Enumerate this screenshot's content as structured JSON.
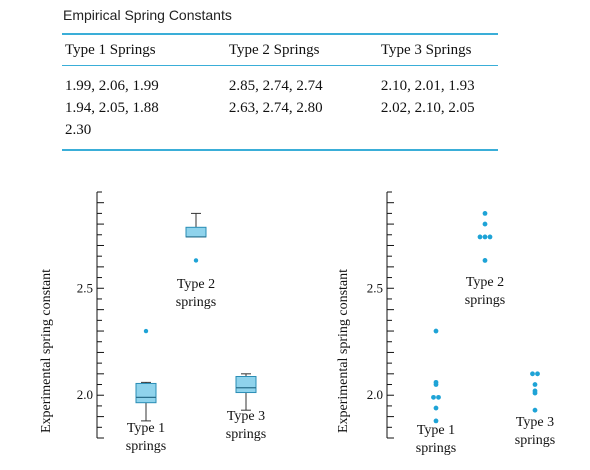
{
  "table": {
    "caption": "Empirical Spring Constants",
    "headers": [
      "Type 1 Springs",
      "Type 2 Springs",
      "Type 3 Springs"
    ],
    "cells": [
      "1.99, 2.06, 1.99\n1.94, 2.05, 1.88\n2.30",
      "2.85, 2.74, 2.74\n2.63, 2.74, 2.80",
      "2.10, 2.01, 1.93\n2.02, 2.10, 2.05"
    ]
  },
  "colors": {
    "accent": "#3aaed8",
    "box_fill": "#8fd3ec",
    "dot": "#1ea3d6"
  },
  "chart_data": [
    {
      "type": "box",
      "ylabel": "Experimental spring constant",
      "ylim": [
        1.8,
        2.95
      ],
      "yticks": [
        2.0,
        2.5
      ],
      "ytick_labels": [
        "2.0",
        "2.5"
      ],
      "groups": [
        {
          "label": [
            "Type 1",
            "springs"
          ],
          "values": [
            1.99,
            2.06,
            1.99,
            1.94,
            2.05,
            1.88,
            2.3
          ]
        },
        {
          "label": [
            "Type 2",
            "springs"
          ],
          "values": [
            2.85,
            2.74,
            2.74,
            2.63,
            2.74,
            2.8
          ]
        },
        {
          "label": [
            "Type 3",
            "springs"
          ],
          "values": [
            2.1,
            2.01,
            1.93,
            2.02,
            2.1,
            2.05
          ]
        }
      ]
    },
    {
      "type": "scatter",
      "ylabel": "Experimental spring constant",
      "ylim": [
        1.8,
        2.95
      ],
      "yticks": [
        2.0,
        2.5
      ],
      "ytick_labels": [
        "2.0",
        "2.5"
      ],
      "groups": [
        {
          "label": [
            "Type 1",
            "springs"
          ],
          "values": [
            1.99,
            2.06,
            1.99,
            1.94,
            2.05,
            1.88,
            2.3
          ]
        },
        {
          "label": [
            "Type 2",
            "springs"
          ],
          "values": [
            2.85,
            2.74,
            2.74,
            2.63,
            2.74,
            2.8
          ]
        },
        {
          "label": [
            "Type 3",
            "springs"
          ],
          "values": [
            2.1,
            2.01,
            1.93,
            2.02,
            2.1,
            2.05
          ]
        }
      ]
    }
  ]
}
